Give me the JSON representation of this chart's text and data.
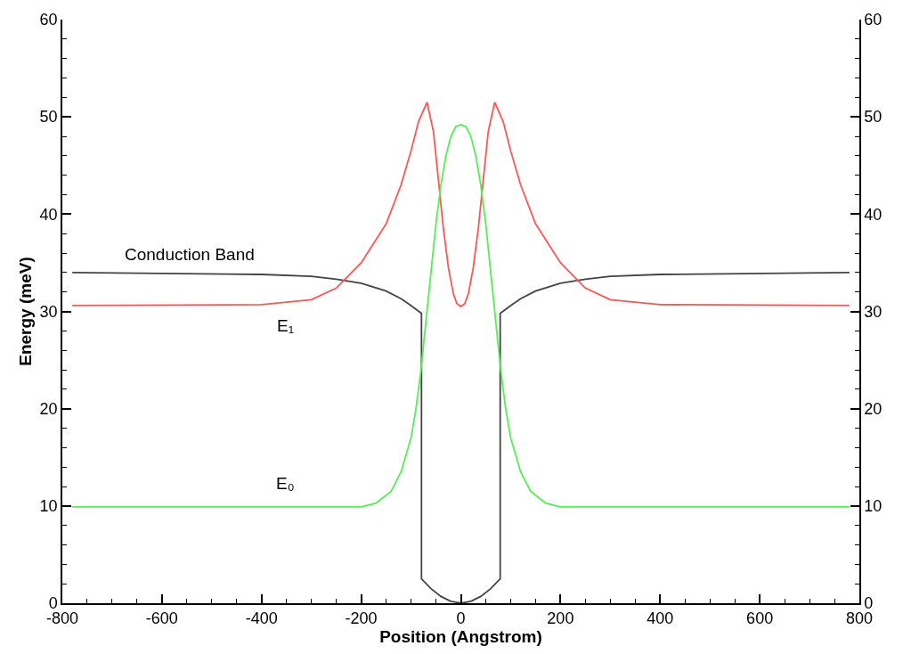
{
  "chart_data": {
    "type": "line",
    "xlabel": "Position (Angstrom)",
    "ylabel": "Energy (meV)",
    "series": [
      {
        "name": "Conduction Band",
        "color": "#444444",
        "x": [
          -780,
          -400,
          -300,
          -250,
          -200,
          -150,
          -120,
          -100,
          -79,
          -79,
          -60,
          -40,
          -20,
          0,
          20,
          40,
          60,
          79,
          79,
          100,
          120,
          150,
          200,
          250,
          300,
          400,
          780
        ],
        "values": [
          34.0,
          33.8,
          33.6,
          33.3,
          32.9,
          32.1,
          31.3,
          30.6,
          29.8,
          2.5,
          1.5,
          0.7,
          0.2,
          0,
          0.2,
          0.7,
          1.5,
          2.5,
          29.8,
          30.6,
          31.3,
          32.1,
          32.9,
          33.3,
          33.6,
          33.8,
          34.0
        ]
      },
      {
        "name": "E₁",
        "color": "#ff5555",
        "x": [
          -780,
          -400,
          -300,
          -250,
          -200,
          -150,
          -120,
          -100,
          -85,
          -68,
          -55,
          -45,
          -35,
          -25,
          -15,
          -8,
          0,
          8,
          15,
          25,
          35,
          45,
          55,
          68,
          85,
          100,
          120,
          150,
          200,
          250,
          300,
          400,
          780
        ],
        "values": [
          30.6,
          30.7,
          31.2,
          32.4,
          35.0,
          39.0,
          43.0,
          46.5,
          49.5,
          51.5,
          48.5,
          43.5,
          38.5,
          34.5,
          31.8,
          30.8,
          30.5,
          30.8,
          31.8,
          34.5,
          38.5,
          43.5,
          48.5,
          51.5,
          49.5,
          46.5,
          43.0,
          39.0,
          35.0,
          32.4,
          31.2,
          30.7,
          30.6
        ]
      },
      {
        "name": "E₀",
        "color": "#55ee55",
        "x": [
          -780,
          -200,
          -170,
          -140,
          -120,
          -100,
          -90,
          -80,
          -70,
          -60,
          -50,
          -40,
          -30,
          -20,
          -10,
          0,
          10,
          20,
          30,
          40,
          50,
          60,
          70,
          80,
          90,
          100,
          120,
          140,
          170,
          200,
          780
        ],
        "values": [
          9.9,
          9.9,
          10.3,
          11.5,
          13.5,
          17.0,
          20.0,
          24.0,
          29.0,
          34.0,
          39.0,
          43.0,
          46.0,
          48.0,
          49.0,
          49.2,
          49.0,
          48.0,
          46.0,
          43.0,
          39.0,
          34.0,
          29.0,
          24.0,
          20.0,
          17.0,
          13.5,
          11.5,
          10.3,
          9.9,
          9.9
        ]
      }
    ],
    "xlim": [
      -800,
      800
    ],
    "xticks": [
      -800,
      {
        "value": -750,
        "label": null
      },
      {
        "value": -700,
        "label": null
      },
      {
        "value": -650,
        "label": null
      },
      -600,
      {
        "value": -550,
        "label": null
      },
      {
        "value": -500,
        "label": null
      },
      {
        "value": -450,
        "label": null
      },
      -400,
      {
        "value": -350,
        "label": null
      },
      {
        "value": -300,
        "label": null
      },
      {
        "value": -250,
        "label": null
      },
      -200,
      {
        "value": -150,
        "label": null
      },
      {
        "value": -100,
        "label": null
      },
      {
        "value": -50,
        "label": null
      },
      0,
      {
        "value": 50,
        "label": null
      },
      {
        "value": 100,
        "label": null
      },
      {
        "value": 150,
        "label": null
      },
      200,
      {
        "value": 250,
        "label": null
      },
      {
        "value": 300,
        "label": null
      },
      {
        "value": 350,
        "label": null
      },
      400,
      {
        "value": 450,
        "label": null
      },
      {
        "value": 500,
        "label": null
      },
      {
        "value": 550,
        "label": null
      },
      600,
      {
        "value": 650,
        "label": null
      },
      {
        "value": 700,
        "label": null
      },
      {
        "value": 750,
        "label": null
      },
      800
    ],
    "ylim": [
      0,
      60
    ],
    "yticks": [
      0,
      {
        "value": 2,
        "label": null
      },
      {
        "value": 4,
        "label": null
      },
      {
        "value": 6,
        "label": null
      },
      {
        "value": 8,
        "label": null
      },
      10,
      {
        "value": 12,
        "label": null
      },
      {
        "value": 14,
        "label": null
      },
      {
        "value": 16,
        "label": null
      },
      {
        "value": 18,
        "label": null
      },
      20,
      {
        "value": 22,
        "label": null
      },
      {
        "value": 24,
        "label": null
      },
      {
        "value": 26,
        "label": null
      },
      {
        "value": 28,
        "label": null
      },
      30,
      {
        "value": 32,
        "label": null
      },
      {
        "value": 34,
        "label": null
      },
      {
        "value": 36,
        "label": null
      },
      {
        "value": 38,
        "label": null
      },
      40,
      {
        "value": 42,
        "label": null
      },
      {
        "value": 44,
        "label": null
      },
      {
        "value": 46,
        "label": null
      },
      {
        "value": 48,
        "label": null
      },
      50,
      {
        "value": 52,
        "label": null
      },
      {
        "value": 54,
        "label": null
      },
      {
        "value": 56,
        "label": null
      },
      {
        "value": 58,
        "label": null
      },
      60
    ],
    "y2lim": [
      0,
      60
    ],
    "y2ticks": [
      0,
      {
        "value": 2,
        "label": null
      },
      {
        "value": 4,
        "label": null
      },
      {
        "value": 6,
        "label": null
      },
      {
        "value": 8,
        "label": null
      },
      10,
      {
        "value": 12,
        "label": null
      },
      {
        "value": 14,
        "label": null
      },
      {
        "value": 16,
        "label": null
      },
      {
        "value": 18,
        "label": null
      },
      20,
      {
        "value": 22,
        "label": null
      },
      {
        "value": 24,
        "label": null
      },
      {
        "value": 26,
        "label": null
      },
      {
        "value": 28,
        "label": null
      },
      30,
      {
        "value": 32,
        "label": null
      },
      {
        "value": 34,
        "label": null
      },
      {
        "value": 36,
        "label": null
      },
      {
        "value": 38,
        "label": null
      },
      40,
      {
        "value": 42,
        "label": null
      },
      {
        "value": 44,
        "label": null
      },
      {
        "value": 46,
        "label": null
      },
      {
        "value": 48,
        "label": null
      },
      50,
      {
        "value": 52,
        "label": null
      },
      {
        "value": 54,
        "label": null
      },
      {
        "value": 56,
        "label": null
      },
      {
        "value": 58,
        "label": null
      },
      60
    ],
    "legend": false,
    "marker": "none",
    "line_style": "solid"
  }
}
